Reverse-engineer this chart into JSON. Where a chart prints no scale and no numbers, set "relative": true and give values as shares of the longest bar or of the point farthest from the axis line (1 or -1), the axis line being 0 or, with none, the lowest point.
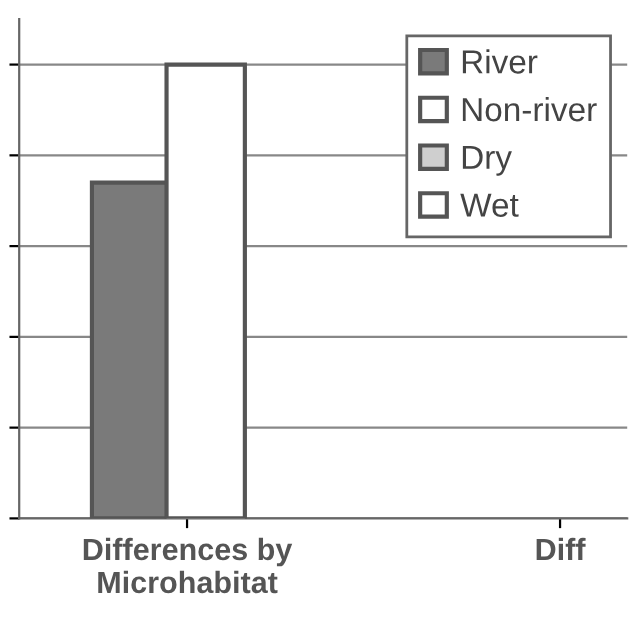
{
  "chart_data": {
    "type": "bar",
    "relative": true,
    "categories": [
      "Differences by\nMicrohabitat",
      "Diff"
    ],
    "series": [
      {
        "name": "River",
        "color": "#7a7a7a",
        "values": [
          0.74,
          null
        ]
      },
      {
        "name": "Non-river",
        "color": "#ffffff",
        "values": [
          1,
          null
        ]
      },
      {
        "name": "Dry",
        "color": "#cfcfcf",
        "values": [
          null,
          null
        ]
      },
      {
        "name": "Wet",
        "color": "#ffffff",
        "values": [
          null,
          null
        ]
      }
    ],
    "grid": "y",
    "legend": "top right"
  }
}
